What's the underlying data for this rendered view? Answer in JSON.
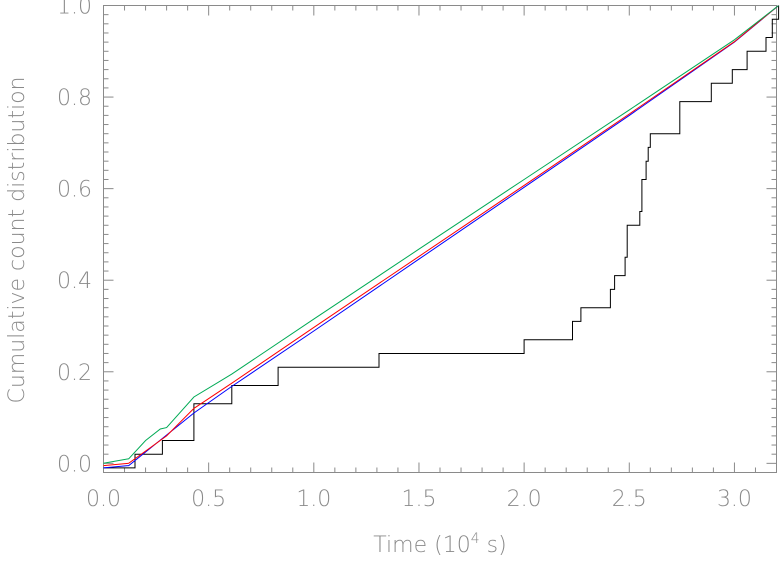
{
  "chart_data": {
    "type": "line",
    "xlabel": "Time (10",
    "xlabel_sup": "4",
    "xlabel_tail": " s)",
    "ylabel": "Cumulative count distribution",
    "xlim": [
      0.0,
      3.2
    ],
    "ylim": [
      -0.02,
      1.0
    ],
    "grid": false,
    "x_ticks": [
      "0.0",
      "0.5",
      "1.0",
      "1.5",
      "2.0",
      "2.5",
      "3.0"
    ],
    "x_tick_values": [
      0.0,
      0.5,
      1.0,
      1.5,
      2.0,
      2.5,
      3.0
    ],
    "y_ticks": [
      "0.0",
      "0.2",
      "0.4",
      "0.6",
      "0.8",
      "1.0"
    ],
    "y_tick_values": [
      0.0,
      0.2,
      0.4,
      0.6,
      0.8,
      1.0
    ],
    "series": [
      {
        "color": "#000000",
        "style": "step",
        "points": [
          [
            0.0,
            -0.01
          ],
          [
            0.15,
            -0.01
          ],
          [
            0.15,
            0.02
          ],
          [
            0.28,
            0.02
          ],
          [
            0.28,
            0.05
          ],
          [
            0.43,
            0.05
          ],
          [
            0.43,
            0.13
          ],
          [
            0.61,
            0.13
          ],
          [
            0.61,
            0.17
          ],
          [
            0.83,
            0.17
          ],
          [
            0.83,
            0.21
          ],
          [
            1.31,
            0.21
          ],
          [
            1.31,
            0.24
          ],
          [
            2.0,
            0.24
          ],
          [
            2.0,
            0.27
          ],
          [
            2.23,
            0.27
          ],
          [
            2.23,
            0.31
          ],
          [
            2.27,
            0.31
          ],
          [
            2.27,
            0.34
          ],
          [
            2.41,
            0.34
          ],
          [
            2.41,
            0.38
          ],
          [
            2.43,
            0.38
          ],
          [
            2.43,
            0.41
          ],
          [
            2.48,
            0.41
          ],
          [
            2.48,
            0.45
          ],
          [
            2.49,
            0.45
          ],
          [
            2.49,
            0.52
          ],
          [
            2.55,
            0.52
          ],
          [
            2.55,
            0.55
          ],
          [
            2.56,
            0.55
          ],
          [
            2.56,
            0.62
          ],
          [
            2.58,
            0.62
          ],
          [
            2.58,
            0.66
          ],
          [
            2.59,
            0.66
          ],
          [
            2.59,
            0.69
          ],
          [
            2.6,
            0.69
          ],
          [
            2.6,
            0.72
          ],
          [
            2.74,
            0.72
          ],
          [
            2.74,
            0.79
          ],
          [
            2.89,
            0.79
          ],
          [
            2.89,
            0.83
          ],
          [
            2.99,
            0.83
          ],
          [
            2.99,
            0.86
          ],
          [
            3.06,
            0.86
          ],
          [
            3.06,
            0.9
          ],
          [
            3.15,
            0.9
          ],
          [
            3.15,
            0.93
          ],
          [
            3.18,
            0.93
          ],
          [
            3.18,
            0.97
          ],
          [
            3.21,
            0.97
          ],
          [
            3.21,
            1.0
          ]
        ]
      },
      {
        "color": "#0000ff",
        "style": "line",
        "points": [
          [
            0.0,
            -0.01
          ],
          [
            0.12,
            -0.005
          ],
          [
            0.43,
            0.11
          ],
          [
            0.61,
            0.168
          ],
          [
            1.0,
            0.289
          ],
          [
            1.5,
            0.446
          ],
          [
            2.0,
            0.603
          ],
          [
            2.5,
            0.76
          ],
          [
            3.0,
            0.92
          ],
          [
            3.21,
            1.0
          ]
        ]
      },
      {
        "color": "#ff0000",
        "style": "line",
        "points": [
          [
            0.0,
            -0.005
          ],
          [
            0.12,
            0.0
          ],
          [
            0.3,
            0.06
          ],
          [
            0.43,
            0.12
          ],
          [
            0.61,
            0.175
          ],
          [
            1.0,
            0.297
          ],
          [
            1.5,
            0.452
          ],
          [
            2.0,
            0.607
          ],
          [
            2.5,
            0.763
          ],
          [
            3.0,
            0.921
          ],
          [
            3.21,
            1.0
          ]
        ]
      },
      {
        "color": "#00aa55",
        "style": "line",
        "points": [
          [
            0.0,
            0.0
          ],
          [
            0.12,
            0.01
          ],
          [
            0.2,
            0.05
          ],
          [
            0.27,
            0.075
          ],
          [
            0.3,
            0.078
          ],
          [
            0.43,
            0.145
          ],
          [
            0.61,
            0.195
          ],
          [
            1.0,
            0.315
          ],
          [
            1.5,
            0.468
          ],
          [
            2.0,
            0.62
          ],
          [
            2.5,
            0.772
          ],
          [
            3.0,
            0.925
          ],
          [
            3.21,
            1.0
          ]
        ]
      }
    ]
  }
}
